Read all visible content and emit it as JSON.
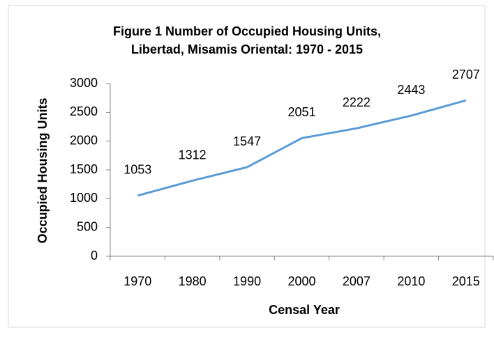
{
  "chart_data": {
    "type": "line",
    "title": [
      "Figure 1 Number of Occupied Housing Units,",
      "Libertad, Misamis Oriental: 1970 - 2015"
    ],
    "x_label": "Censal Year",
    "y_label": "Occupied Housing Units",
    "categories": [
      "1970",
      "1980",
      "1990",
      "2000",
      "2007",
      "2010",
      "2015"
    ],
    "values": [
      1053,
      1312,
      1547,
      2051,
      2222,
      2443,
      2707
    ],
    "color": "#5b9bd5",
    "ylim": [
      0,
      3000
    ],
    "yticks": [
      0,
      500,
      1000,
      1500,
      2000,
      2500,
      3000
    ],
    "grid": false
  }
}
